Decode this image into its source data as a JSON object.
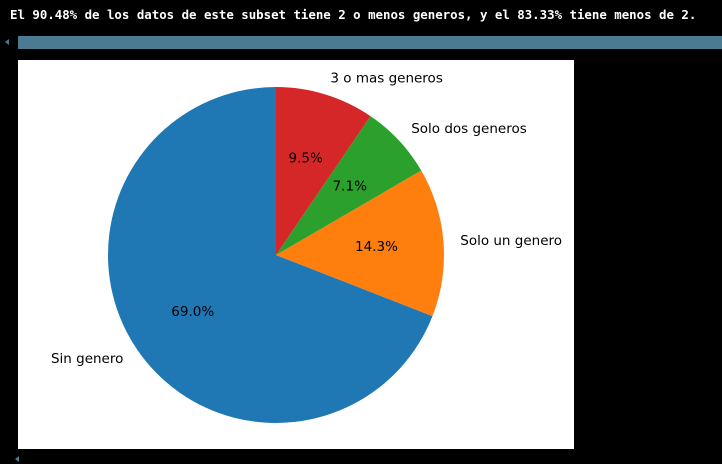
{
  "output": {
    "text": "El 90.48% de los datos de este subset tiene 2 o menos generos, y el 83.33% tiene menos de 2."
  },
  "colors": {
    "background": "#000000",
    "scrollbar": "#4b7a93",
    "figure_bg": "#ffffff"
  },
  "chart_data": {
    "type": "pie",
    "start_angle_deg": 90,
    "direction": "counterclockwise",
    "slices": [
      {
        "label": "Sin genero",
        "value": 69.0,
        "pct_label": "69.0%",
        "color": "#1f77b4"
      },
      {
        "label": "Solo un genero",
        "value": 14.3,
        "pct_label": "14.3%",
        "color": "#ff7f0e"
      },
      {
        "label": "Solo dos generos",
        "value": 7.1,
        "pct_label": "7.1%",
        "color": "#2ca02c"
      },
      {
        "label": "3 o mas generos",
        "value": 9.5,
        "pct_label": "9.5%",
        "color": "#d62728"
      }
    ],
    "title": "",
    "legend": "none"
  }
}
